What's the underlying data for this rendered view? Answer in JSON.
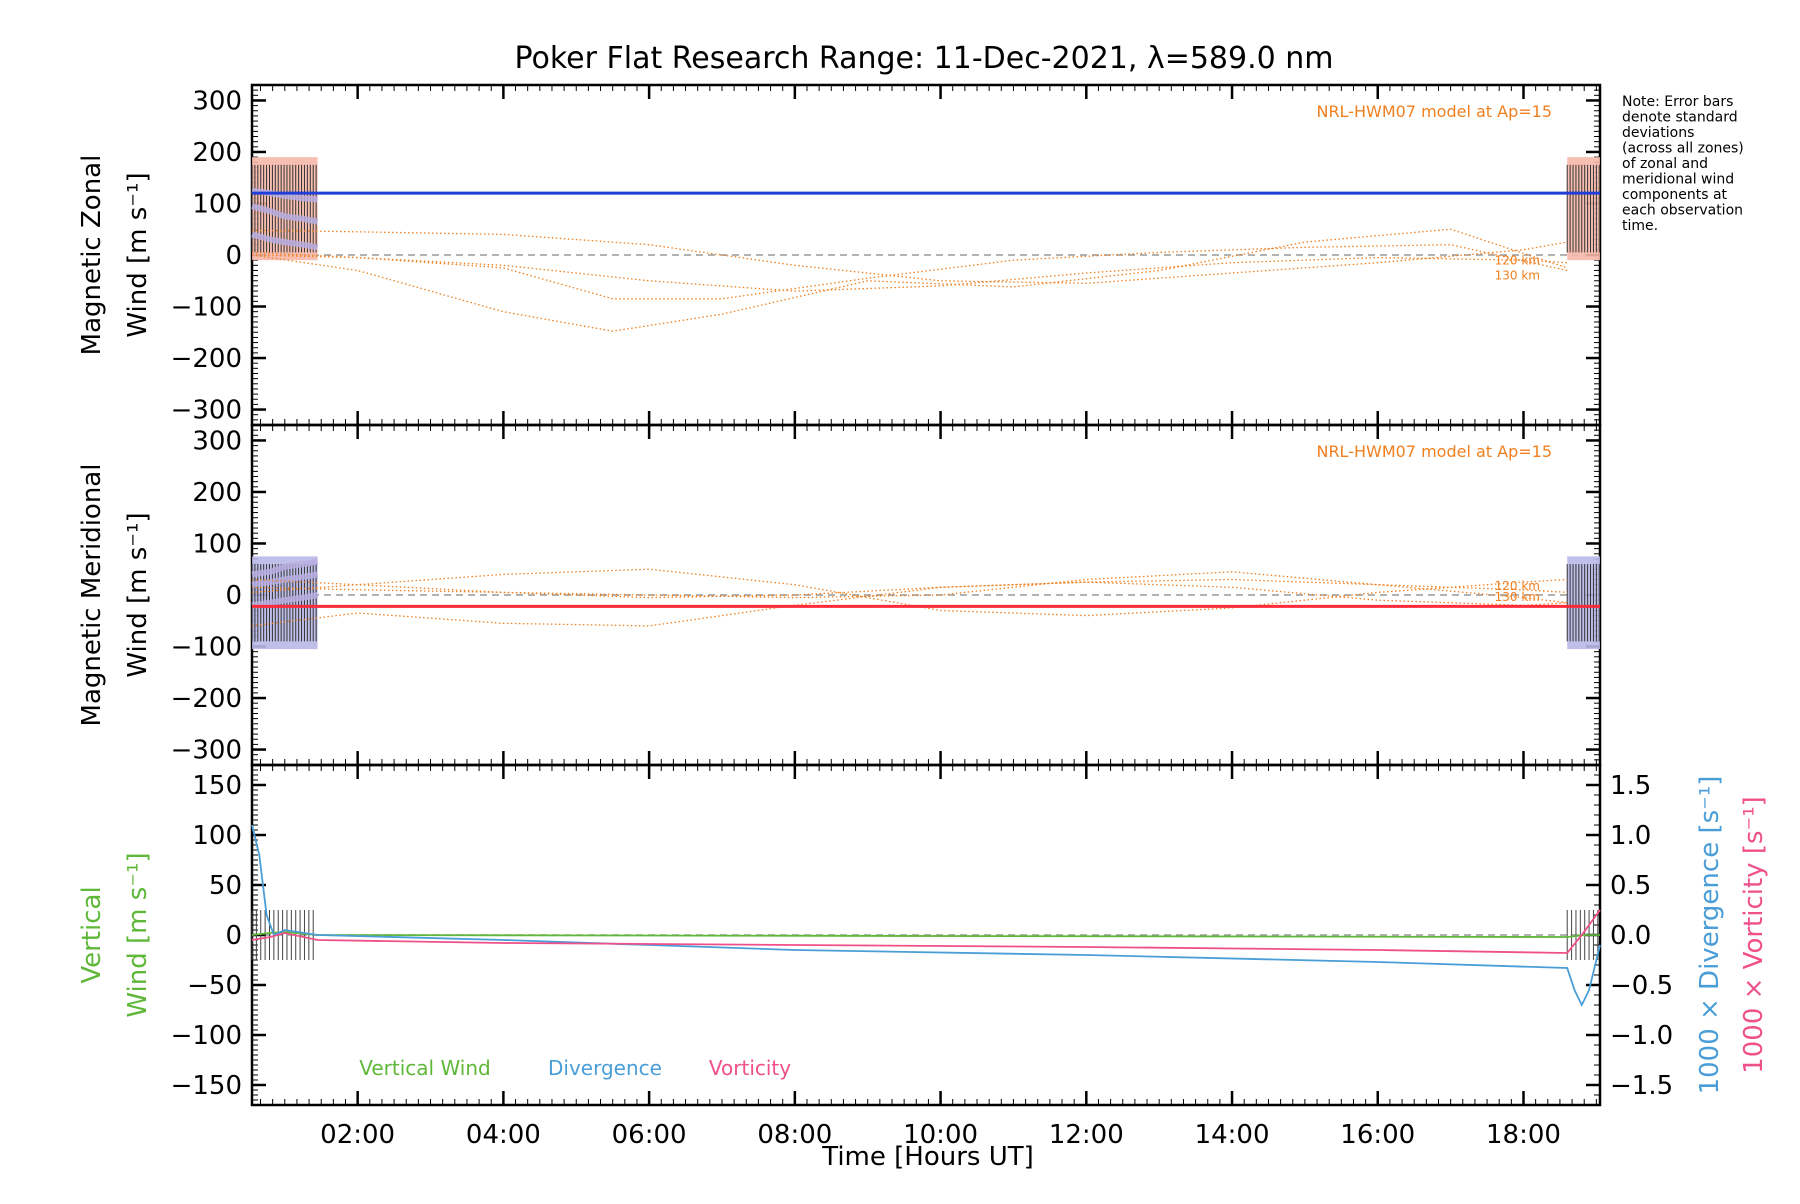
{
  "title": "Poker Flat Research Range: 11-Dec-2021, λ=589.0 nm",
  "note": [
    "Note: Error bars",
    "denote standard",
    "deviations",
    "(across all zones)",
    "of zonal and",
    "meridional wind",
    "components at",
    "each observation",
    "time."
  ],
  "xlabel": "Time [Hours UT]",
  "x_ticks": [
    "02:00",
    "04:00",
    "06:00",
    "08:00",
    "10:00",
    "12:00",
    "14:00",
    "16:00",
    "18:00"
  ],
  "x_tick_values": [
    2,
    4,
    6,
    8,
    10,
    12,
    14,
    16,
    18
  ],
  "xlim": [
    0.55,
    19.05
  ],
  "colors": {
    "model": "#f08020",
    "zonal": "#1f3fd8",
    "meridional": "#ff2a3a",
    "zonal_errbar_fill": "#f6b8a8",
    "meridional_errbar_fill": "#b8b8e8",
    "zone_points": "#b8aee0",
    "vertical": "#5fb83a",
    "divergence": "#4a9ed8",
    "vorticity": "#f0508a"
  },
  "chart_data": [
    {
      "type": "line",
      "panel": "zonal",
      "ylabel_line1": "Magnetic Zonal",
      "ylabel_line2": "Wind [m s⁻¹]",
      "ylim": [
        -330,
        330
      ],
      "y_ticks": [
        300,
        200,
        100,
        0,
        -100,
        -200,
        -300
      ],
      "y_tick_labels": [
        "300",
        "200",
        "100",
        "0",
        "−100",
        "−200",
        "−300"
      ],
      "model_label": "NRL-HWM07 model at Ap=15",
      "km_labels": [
        "120 km",
        "130 km"
      ],
      "mean_wind": 120,
      "observation_windows": [
        [
          0.55,
          1.45
        ],
        [
          18.6,
          19.05
        ]
      ],
      "errbar_range": [
        -10,
        190
      ],
      "zone_tracks": [
        {
          "x": [
            0.55,
            0.8,
            1.0,
            1.25,
            1.45
          ],
          "y": [
            40,
            30,
            25,
            20,
            15
          ]
        },
        {
          "x": [
            0.55,
            0.8,
            1.0,
            1.25,
            1.45
          ],
          "y": [
            95,
            85,
            75,
            70,
            65
          ]
        },
        {
          "x": [
            0.55,
            0.8,
            1.0,
            1.25,
            1.45
          ],
          "y": [
            125,
            120,
            115,
            110,
            108
          ]
        }
      ],
      "series": [
        {
          "name": "120 km",
          "x": [
            0.55,
            2,
            4,
            5.5,
            7,
            9,
            11,
            13,
            15,
            17,
            18.6
          ],
          "y": [
            5,
            -5,
            -25,
            -85,
            -85,
            -45,
            -10,
            5,
            15,
            20,
            -30
          ]
        },
        {
          "name": "130 km",
          "x": [
            0.55,
            2,
            4,
            5.5,
            7,
            9,
            11,
            13,
            15,
            17,
            18.6
          ],
          "y": [
            0,
            -30,
            -110,
            -148,
            -115,
            -50,
            -62,
            -30,
            25,
            50,
            -25
          ]
        },
        {
          "x": [
            0.55,
            2,
            4,
            6,
            8,
            10,
            12,
            14,
            16,
            18,
            18.6
          ],
          "y": [
            48,
            45,
            40,
            20,
            -20,
            -50,
            -55,
            -35,
            -15,
            10,
            25
          ]
        },
        {
          "x": [
            0.55,
            2,
            4,
            6,
            8,
            10,
            12,
            14,
            16,
            18,
            18.6
          ],
          "y": [
            0,
            -5,
            -20,
            -50,
            -70,
            -60,
            -35,
            -15,
            -5,
            -10,
            -15
          ]
        }
      ]
    },
    {
      "type": "line",
      "panel": "meridional",
      "ylabel_line1": "Magnetic Meridional",
      "ylabel_line2": "Wind [m s⁻¹]",
      "ylim": [
        -330,
        330
      ],
      "y_ticks": [
        300,
        200,
        100,
        0,
        -100,
        -200,
        -300
      ],
      "y_tick_labels": [
        "300",
        "200",
        "100",
        "0",
        "−100",
        "−200",
        "−300"
      ],
      "model_label": "NRL-HWM07 model at Ap=15",
      "km_labels": [
        "120 km",
        "130 km"
      ],
      "mean_wind": -22,
      "observation_windows": [
        [
          0.55,
          1.45
        ],
        [
          18.6,
          19.05
        ]
      ],
      "errbar_range": [
        -105,
        75
      ],
      "zone_tracks": [
        {
          "x": [
            0.55,
            0.8,
            1.0,
            1.25,
            1.45
          ],
          "y": [
            40,
            45,
            55,
            60,
            65
          ]
        },
        {
          "x": [
            0.55,
            0.8,
            1.0,
            1.25,
            1.45
          ],
          "y": [
            20,
            25,
            30,
            35,
            40
          ]
        },
        {
          "x": [
            0.55,
            0.8,
            1.0,
            1.25,
            1.45
          ],
          "y": [
            -20,
            -15,
            -10,
            -5,
            0
          ]
        }
      ],
      "series": [
        {
          "name": "120 km",
          "x": [
            0.55,
            2,
            4,
            6,
            8,
            10,
            12,
            14,
            16,
            18,
            18.6
          ],
          "y": [
            30,
            20,
            5,
            -5,
            0,
            15,
            25,
            30,
            20,
            10,
            5
          ]
        },
        {
          "name": "130 km",
          "x": [
            0.55,
            2,
            4,
            6,
            8,
            10,
            12,
            14,
            16,
            18,
            18.6
          ],
          "y": [
            -60,
            -35,
            -55,
            -60,
            -20,
            15,
            25,
            15,
            -10,
            -20,
            -15
          ]
        },
        {
          "x": [
            0.55,
            2,
            4,
            6,
            8,
            10,
            12,
            14,
            16,
            18,
            18.6
          ],
          "y": [
            5,
            20,
            40,
            50,
            20,
            -30,
            -40,
            -25,
            5,
            25,
            30
          ]
        },
        {
          "x": [
            0.55,
            2,
            4,
            6,
            8,
            10,
            12,
            14,
            16,
            18,
            18.6
          ],
          "y": [
            15,
            10,
            5,
            0,
            -5,
            0,
            30,
            45,
            20,
            -5,
            -15
          ]
        }
      ]
    },
    {
      "type": "line",
      "panel": "vertical",
      "ylabel_line1": "Vertical",
      "ylabel_line2": "Wind [m s⁻¹]",
      "ylim": [
        -170,
        170
      ],
      "y_ticks": [
        150,
        100,
        50,
        0,
        -50,
        -100,
        -150
      ],
      "y_tick_labels": [
        "150",
        "100",
        "50",
        "0",
        "−50",
        "−100",
        "−150"
      ],
      "y2_label_div": "1000 × Divergence [s⁻¹]",
      "y2_label_vort": "1000 × Vorticity [s⁻¹]",
      "y2lim": [
        -1.7,
        1.7
      ],
      "y2_ticks": [
        1.5,
        1.0,
        0.5,
        0.0,
        -0.5,
        -1.0,
        -1.5
      ],
      "y2_tick_labels": [
        "1.5",
        "1.0",
        "0.5",
        "0.0",
        "−0.5",
        "−1.0",
        "−1.5"
      ],
      "legend": [
        "Vertical Wind",
        "Divergence",
        "Vorticity"
      ],
      "series": [
        {
          "name": "Vertical Wind",
          "x": [
            0.55,
            0.8,
            1.0,
            1.45,
            18.6,
            18.85,
            19.05
          ],
          "y": [
            0,
            2,
            3,
            0,
            -2,
            0,
            0
          ]
        },
        {
          "name": "Divergence",
          "axis": "y2",
          "x": [
            0.55,
            0.65,
            0.75,
            0.85,
            1.0,
            1.45,
            4,
            8,
            12,
            16,
            18.6,
            18.7,
            18.8,
            18.9,
            19.05
          ],
          "y": [
            1.1,
            0.8,
            0.2,
            0.0,
            0.05,
            0.0,
            -0.05,
            -0.15,
            -0.2,
            -0.27,
            -0.33,
            -0.55,
            -0.7,
            -0.55,
            -0.1
          ]
        },
        {
          "name": "Vorticity",
          "axis": "y2",
          "x": [
            0.55,
            0.8,
            1.0,
            1.45,
            4,
            8,
            12,
            16,
            18.6,
            18.8,
            19.05
          ],
          "y": [
            -0.05,
            -0.02,
            0.02,
            -0.05,
            -0.08,
            -0.1,
            -0.12,
            -0.15,
            -0.18,
            0.0,
            0.25
          ]
        }
      ]
    }
  ]
}
